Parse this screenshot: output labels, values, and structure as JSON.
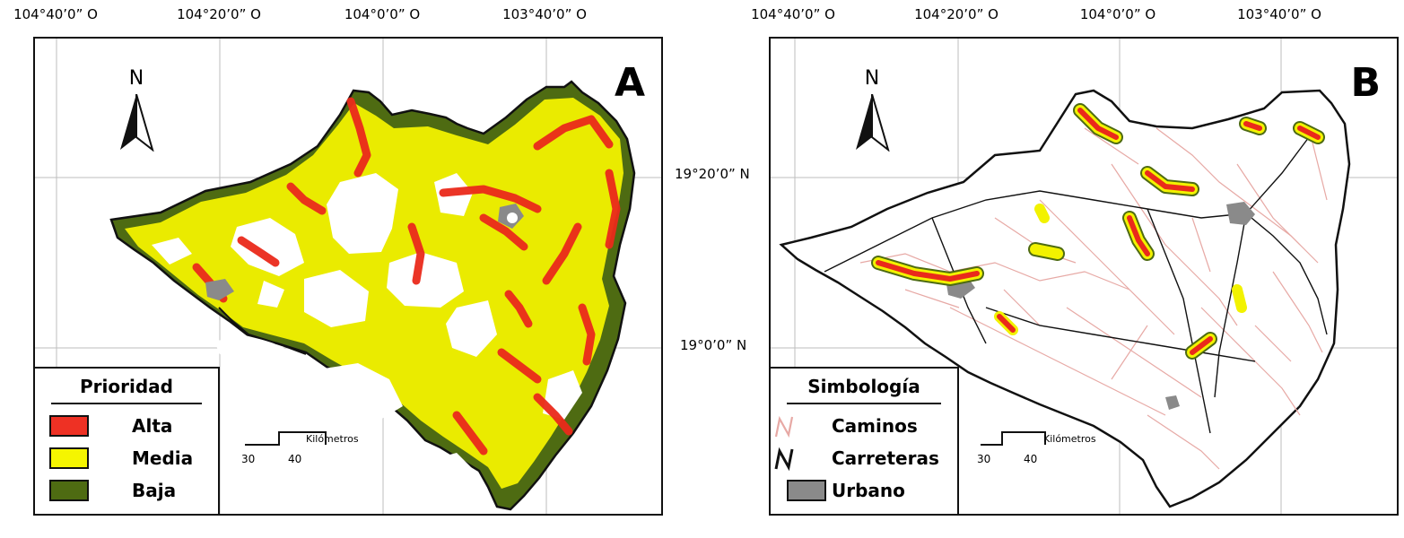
{
  "lon_ticks": [
    "104°40’0” O",
    "104°20’0” O",
    "104°0’0” O",
    "103°40’0” O"
  ],
  "lat_ticks": [
    "19°20’0” N",
    "19°0’0” N"
  ],
  "north_label": "N",
  "panel_a": {
    "letter": "A",
    "legend": {
      "title": "Prioridad",
      "items": [
        {
          "label": "Alta",
          "color": "#ee3124"
        },
        {
          "label": "Media",
          "color": "#f5f500"
        },
        {
          "label": "Baja",
          "color": "#4e6b12"
        }
      ]
    }
  },
  "panel_b": {
    "letter": "B",
    "legend": {
      "title": "Simbología",
      "items": [
        {
          "label": "Caminos",
          "symbol": "road-line-icon",
          "color": "#e7a9a5"
        },
        {
          "label": "Carreteras",
          "symbol": "highway-line-icon",
          "color": "#111111"
        },
        {
          "label": "Urbano",
          "symbol": "urban-area-icon",
          "color": "#8a8a8a"
        }
      ]
    }
  },
  "scale_bar": {
    "unit": "Kilómetros",
    "ticks": [
      "30",
      "40"
    ]
  }
}
